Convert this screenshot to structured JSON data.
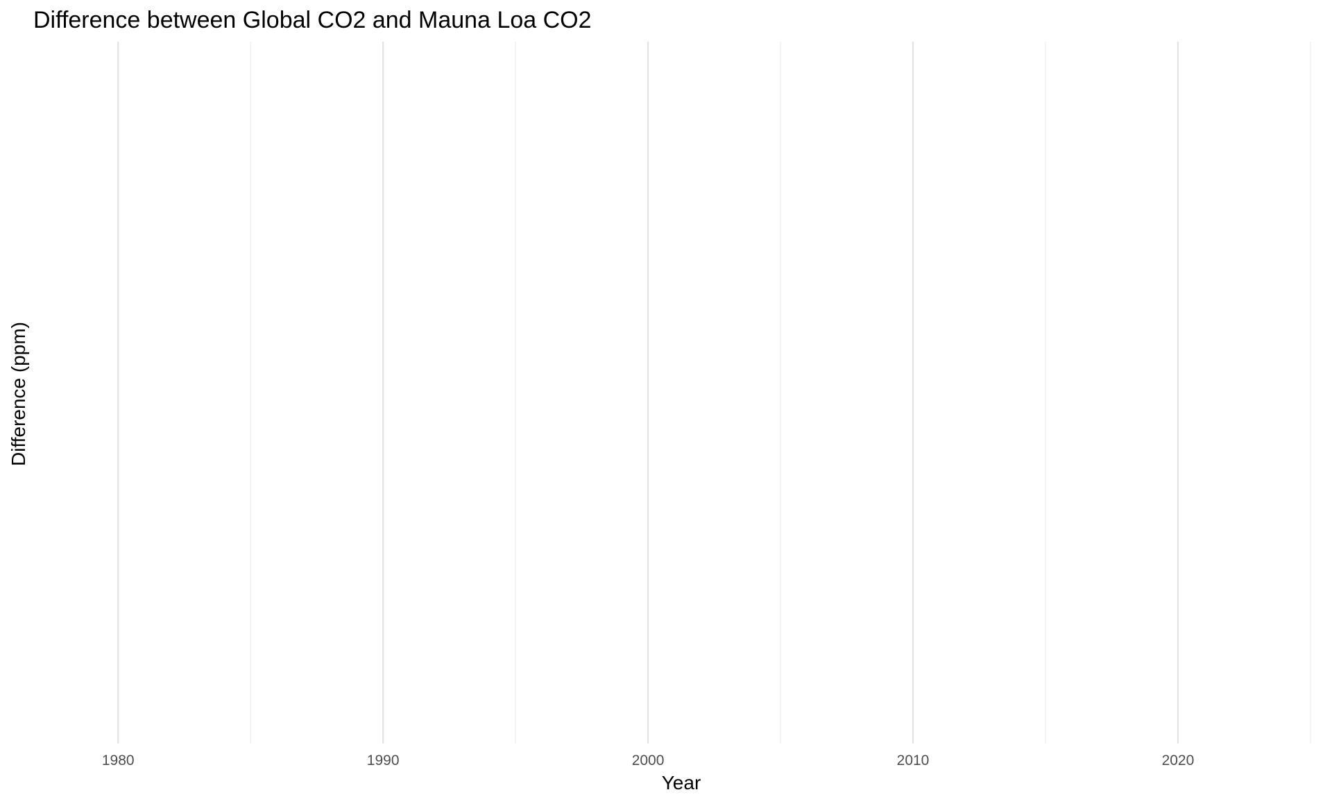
{
  "chart_data": {
    "type": "line",
    "title": "Difference between Global CO2 and Mauna Loa CO2",
    "xlabel": "Year",
    "ylabel": "Difference (ppm)",
    "x_ticks": [
      1980,
      1990,
      2000,
      2010,
      2020
    ],
    "x_tick_labels": [
      "1980",
      "1990",
      "2000",
      "2010",
      "2020"
    ],
    "xlim": [
      1976.8,
      2025.5
    ],
    "x_minor_ticks": [
      1985,
      1995,
      2005,
      2015,
      2025
    ],
    "grid": true,
    "legend": "none",
    "series": []
  },
  "colors": {
    "background": "#ffffff",
    "grid_major": "#e5e5e5",
    "grid_minor": "#efefef",
    "tick_text": "#4d4d4d",
    "text": "#000000"
  }
}
